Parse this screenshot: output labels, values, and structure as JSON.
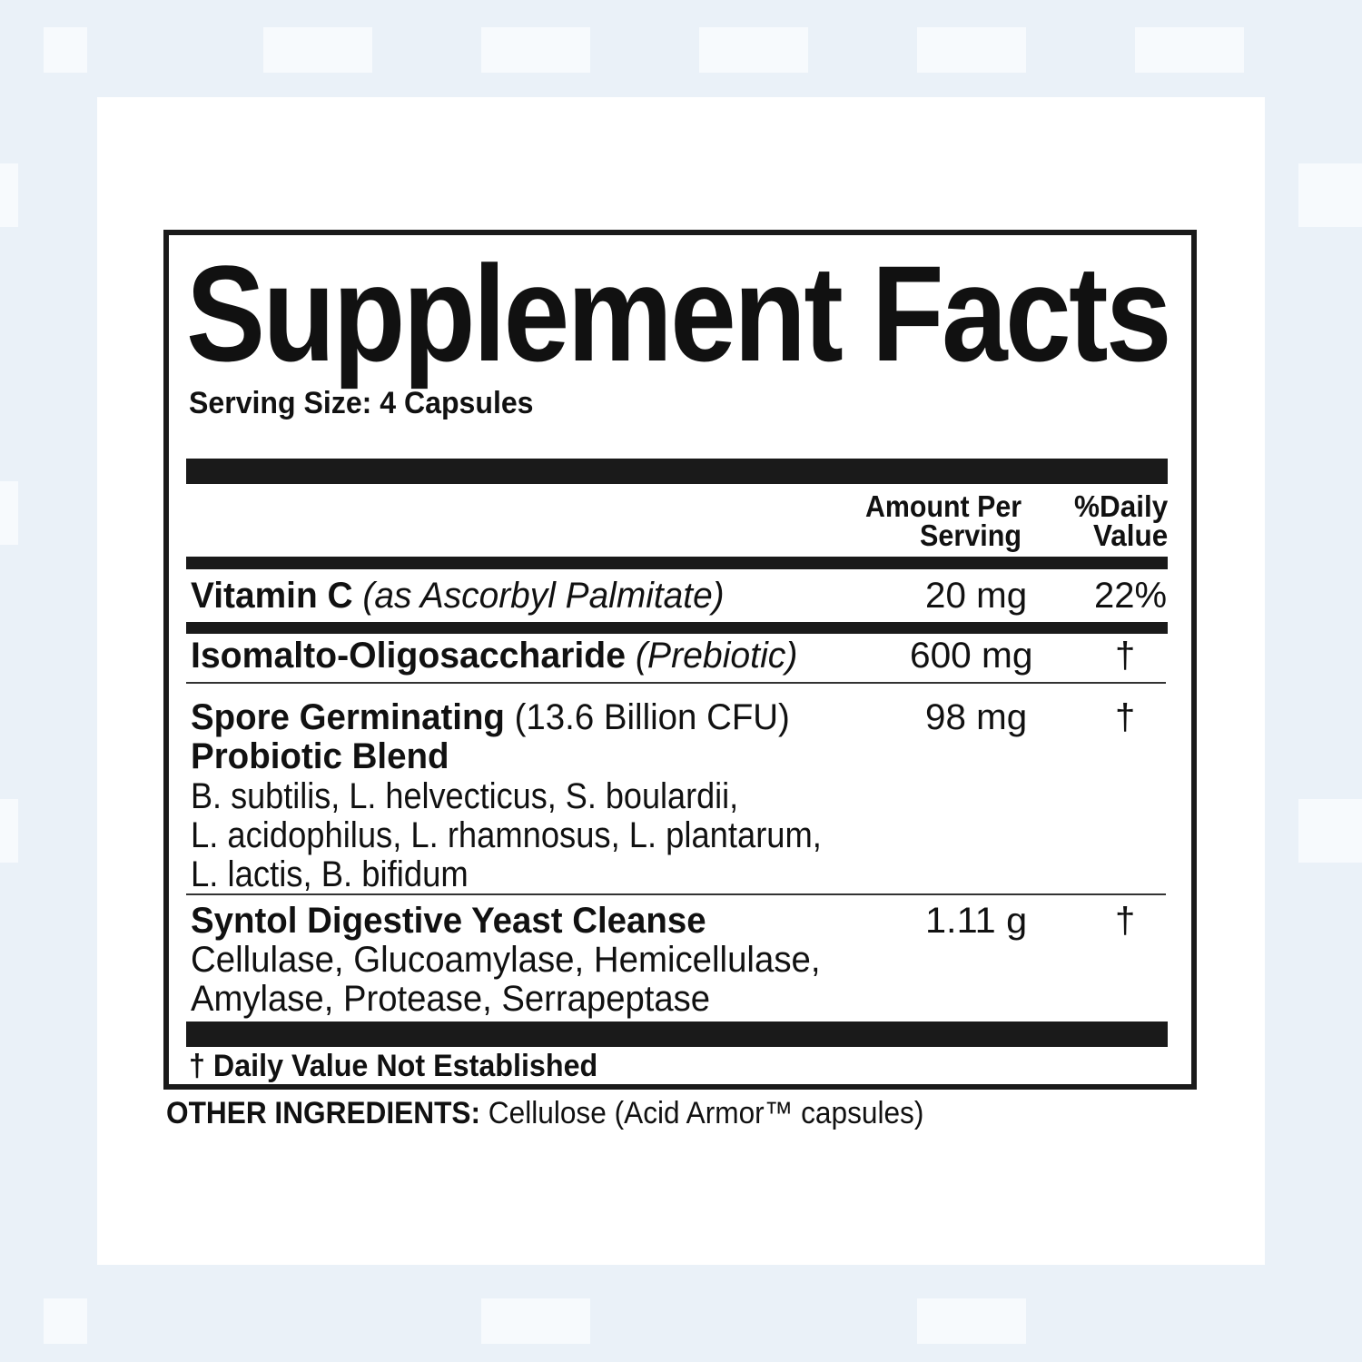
{
  "label": {
    "title": "Supplement Facts",
    "serving_size": "Serving Size: 4 Capsules",
    "header": {
      "amount_line1": "Amount Per",
      "amount_line2": "Serving",
      "dv_line1": "%Daily",
      "dv_line2": "Value"
    },
    "rows": [
      {
        "name": "Vitamin C",
        "note": "(as Ascorbyl Palmitate)",
        "amount": "20 mg",
        "dv": "22%"
      },
      {
        "name": "Isomalto-Oligosaccharide",
        "note": "(Prebiotic)",
        "amount": "600 mg",
        "dv": "†"
      },
      {
        "name": "Spore Germinating",
        "note": "(13.6 Billion CFU)",
        "name2": "Probiotic Blend",
        "amount": "98 mg",
        "dv": "†",
        "details": [
          "B. subtilis, L. helvecticus, S. boulardii,",
          "L. acidophilus, L. rhamnosus, L. plantarum,",
          "L. lactis, B. bifidum"
        ]
      },
      {
        "name": "Syntol Digestive Yeast Cleanse",
        "amount": "1.11 g",
        "dv": "†",
        "details": [
          "Cellulase, Glucoamylase, Hemicellulase,",
          "Amylase, Protease, Serrapeptase"
        ]
      }
    ],
    "footnote": "† Daily Value Not Established"
  },
  "other_ingredients": {
    "label": "OTHER INGREDIENTS:",
    "text": "Cellulose (Acid Armor™ capsules)"
  },
  "colors": {
    "background": "#eaf1f8",
    "panel": "#ffffff",
    "ink": "#111111"
  }
}
